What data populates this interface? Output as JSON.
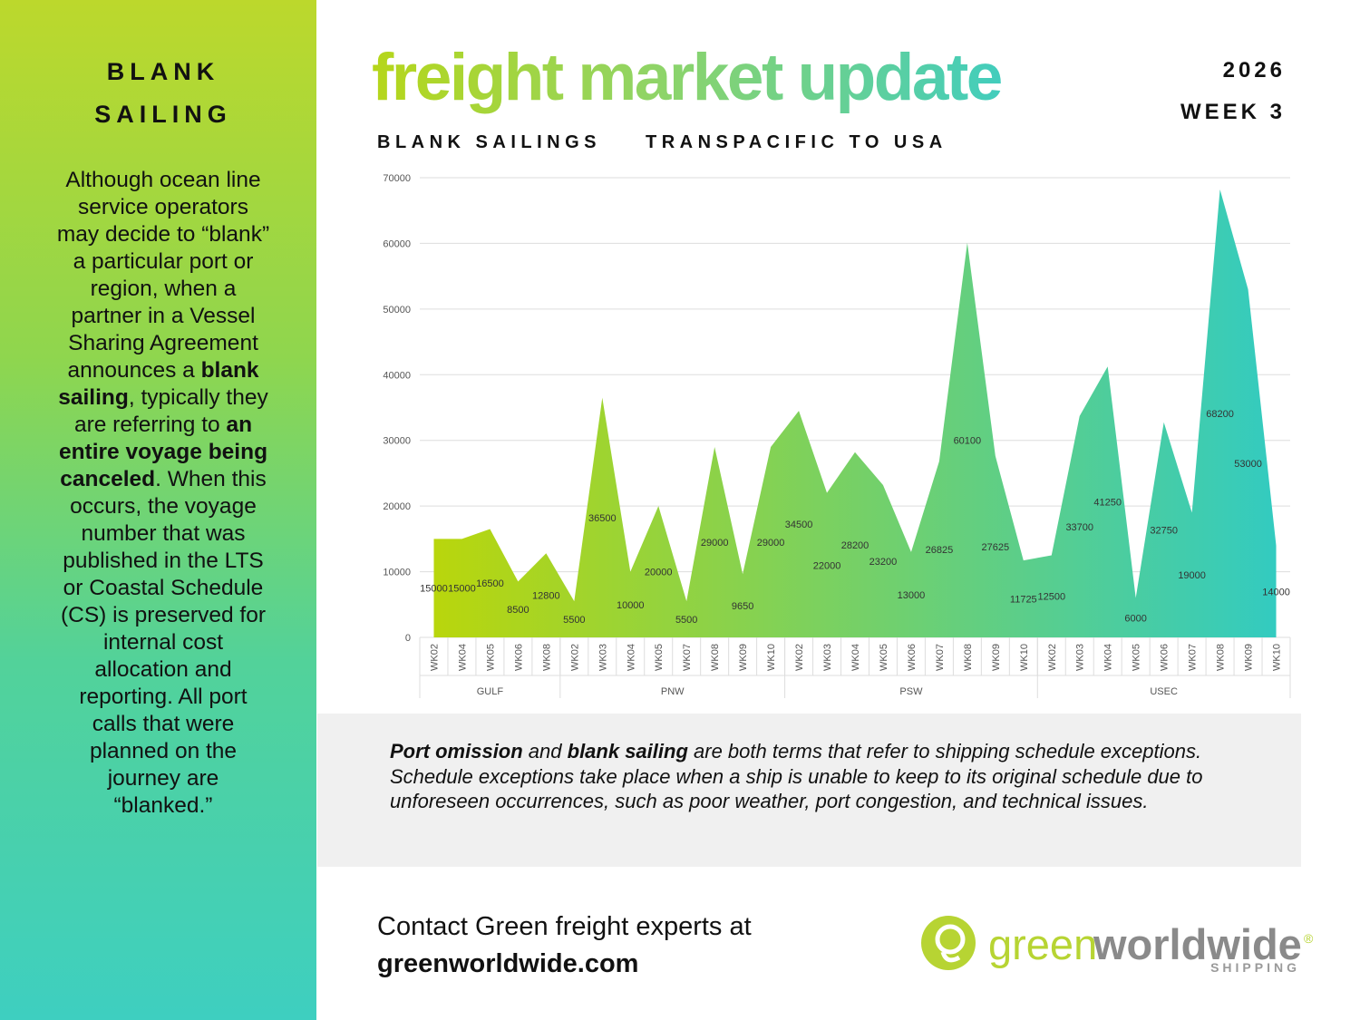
{
  "sidebar": {
    "title": "BLANK SAILING",
    "body": [
      {
        "text": "Although ocean line service operators may decide to “blank” a particular port or region, when a partner in a Vessel Sharing Agreement announces a ",
        "bold": false
      },
      {
        "text": "blank sailing",
        "bold": true
      },
      {
        "text": ", typically they are referring to ",
        "bold": false
      },
      {
        "text": "an entire voyage being canceled",
        "bold": true
      },
      {
        "text": ". When this occurs, the voyage number that was published in the LTS or Coastal Schedule (CS) is preserved for internal cost allocation and reporting. All port calls that were planned on the journey are “blanked.”",
        "bold": false
      }
    ]
  },
  "header": {
    "title": "freight market update",
    "year": "2026",
    "week": "WEEK 3"
  },
  "chart_data": {
    "type": "area",
    "title": "BLANK SAILINGS",
    "subtitle": "TRANSPACIFIC TO USA",
    "groups": [
      {
        "name": "GULF",
        "categories": [
          "WK02",
          "WK04",
          "WK05",
          "WK06",
          "WK08"
        ],
        "values": [
          15000,
          15000,
          16500,
          8500,
          12800
        ]
      },
      {
        "name": "PNW",
        "categories": [
          "WK02",
          "WK03",
          "WK04",
          "WK05",
          "WK07",
          "WK08",
          "WK09",
          "WK10"
        ],
        "values": [
          5500,
          36500,
          10000,
          20000,
          5500,
          29000,
          9650,
          29000
        ]
      },
      {
        "name": "PSW",
        "categories": [
          "WK02",
          "WK03",
          "WK04",
          "WK05",
          "WK06",
          "WK07",
          "WK08",
          "WK09",
          "WK10"
        ],
        "values": [
          34500,
          22000,
          28200,
          23200,
          13000,
          26825,
          60100,
          27625,
          11725
        ]
      },
      {
        "name": "USEC",
        "categories": [
          "WK02",
          "WK03",
          "WK04",
          "WK05",
          "WK06",
          "WK07",
          "WK08",
          "WK09",
          "WK10"
        ],
        "values": [
          12500,
          33700,
          41250,
          6000,
          32750,
          19000,
          68200,
          53000,
          14000
        ]
      }
    ],
    "ylim": [
      0,
      70000
    ],
    "yticks": [
      0,
      10000,
      20000,
      30000,
      40000,
      50000,
      60000,
      70000
    ],
    "grid": true,
    "gradient": [
      "#b9d60c",
      "#33cbc0"
    ]
  },
  "note": [
    {
      "text": "Port omission",
      "bold": true
    },
    {
      "text": " and ",
      "bold": false
    },
    {
      "text": "blank sailing",
      "bold": true
    },
    {
      "text": " are both terms that refer to shipping schedule exceptions. Schedule exceptions take place when a ship is unable to keep to its original schedule due to unforeseen occurrences, such as poor weather, port congestion, and technical issues.",
      "bold": false
    }
  ],
  "contact": {
    "text": "Contact Green freight experts at",
    "link": "greenworldwide.com"
  },
  "logo": {
    "green": "green",
    "worldwide": "worldwide",
    "mark": "®",
    "sub": "SHIPPING"
  }
}
